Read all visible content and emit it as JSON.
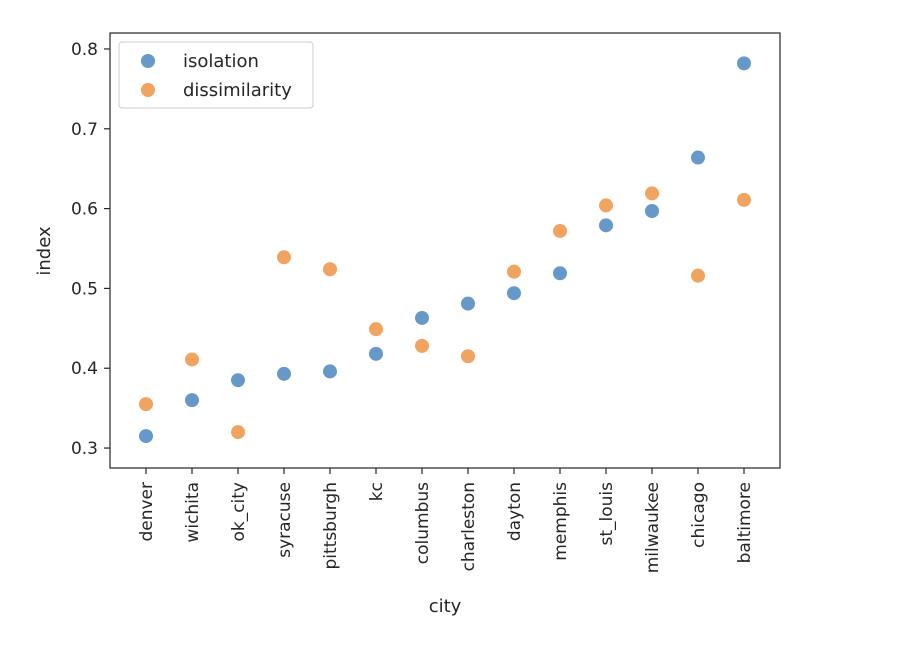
{
  "chart_data": {
    "type": "scatter",
    "title": "",
    "xlabel": "city",
    "ylabel": "index",
    "categories": [
      "denver",
      "wichita",
      "ok_city",
      "syracuse",
      "pittsburgh",
      "kc",
      "columbus",
      "charleston",
      "dayton",
      "memphis",
      "st_louis",
      "milwaukee",
      "chicago",
      "baltimore"
    ],
    "yticks": [
      "0.3",
      "0.4",
      "0.5",
      "0.6",
      "0.7",
      "0.8"
    ],
    "ylim": [
      0.275,
      0.82
    ],
    "grid": false,
    "legend_position": "top-left",
    "series": [
      {
        "name": "isolation",
        "color": "#6699c9",
        "values": [
          0.315,
          0.36,
          0.385,
          0.393,
          0.396,
          0.418,
          0.463,
          0.481,
          0.494,
          0.519,
          0.579,
          0.597,
          0.664,
          0.782
        ]
      },
      {
        "name": "dissimilarity",
        "color": "#f0a460",
        "values": [
          0.355,
          0.411,
          0.32,
          0.539,
          0.524,
          0.449,
          0.428,
          0.415,
          0.521,
          0.572,
          0.604,
          0.619,
          0.516,
          0.611
        ]
      }
    ]
  }
}
